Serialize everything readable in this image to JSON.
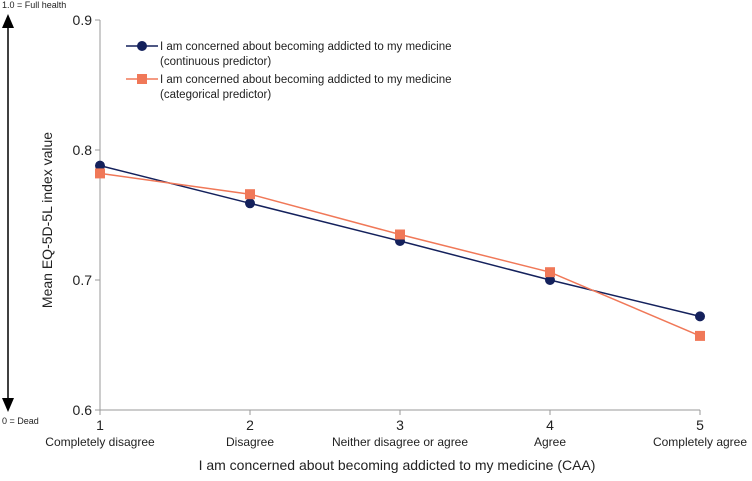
{
  "chart_data": {
    "type": "line",
    "title": "",
    "xlabel": "I am concerned about becoming addicted to my medicine (CAA)",
    "ylabel": "Mean EQ-5D-5L index value",
    "xlim": [
      1,
      5
    ],
    "ylim": [
      0.6,
      0.9
    ],
    "x_ticks": [
      "1",
      "2",
      "3",
      "4",
      "5"
    ],
    "y_ticks": [
      "0.6",
      "0.7",
      "0.8",
      "0.9"
    ],
    "categories": [
      "Completely disagree",
      "Disagree",
      "Neither disagree or agree",
      "Agree",
      "Completely agree"
    ],
    "series": [
      {
        "name": "I am concerned about becoming addicted to my medicine",
        "name_sub": "(continuous predictor)",
        "color": "#14215c",
        "marker": "circle",
        "x": [
          1,
          2,
          3,
          4,
          5
        ],
        "values": [
          0.788,
          0.759,
          0.73,
          0.7,
          0.672
        ]
      },
      {
        "name": "I am concerned about becoming addicted to my medicine",
        "name_sub": "(categorical predictor)",
        "color": "#f07858",
        "marker": "square",
        "x": [
          1,
          2,
          3,
          4,
          5
        ],
        "values": [
          0.782,
          0.766,
          0.735,
          0.706,
          0.657
        ]
      }
    ],
    "legend": "top-left",
    "scale_arrow": {
      "top_label": "1.0 = Full health",
      "bottom_label": "0 = Dead"
    }
  }
}
